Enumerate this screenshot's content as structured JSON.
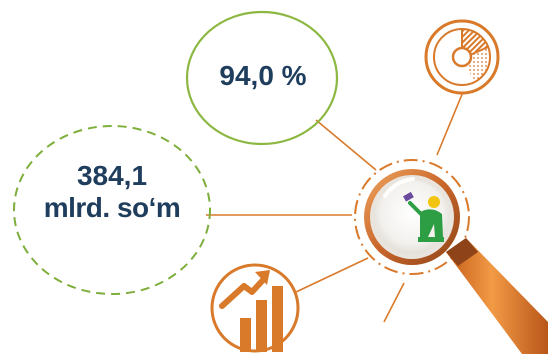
{
  "stats": {
    "percent": "94,0 %",
    "amount_number": "384,1",
    "amount_unit": "mlrd. so‘m"
  },
  "colors": {
    "accent_orange": "#d9792a",
    "handle_orange": "#e07a1f",
    "circle_green": "#8cb842",
    "dashed_green": "#7eae3c",
    "text_navy": "#1f3d5c",
    "lens_bg": "#f7f5f2",
    "icon_green": "#2e9e45",
    "icon_yellow": "#f2c40f",
    "icon_purple": "#6c4a9e"
  },
  "icons": {
    "magnifier": "magnifier-icon",
    "worker": "worker-icon",
    "pie_chart": "pie-chart-icon",
    "growth_chart": "growth-chart-icon"
  }
}
